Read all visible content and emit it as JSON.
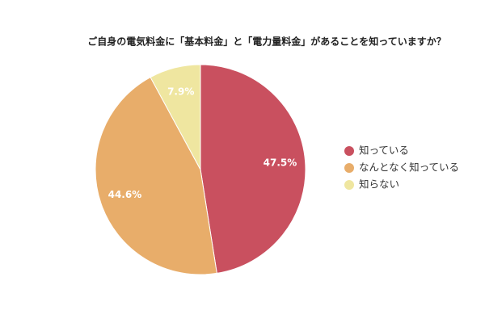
{
  "chart_data": {
    "type": "pie",
    "title": "ご自身の電気料金に「基本料金」と「電力量料金」があることを知っていますか？",
    "categories": [
      "知っている",
      "なんとなく知っている",
      "知らない"
    ],
    "values": [
      47.5,
      44.6,
      7.9
    ],
    "value_labels": [
      "47.5%",
      "44.6%",
      "7.9%"
    ],
    "colors": [
      "#c9505f",
      "#e8ad6a",
      "#efe6a0"
    ],
    "legend": "right"
  }
}
